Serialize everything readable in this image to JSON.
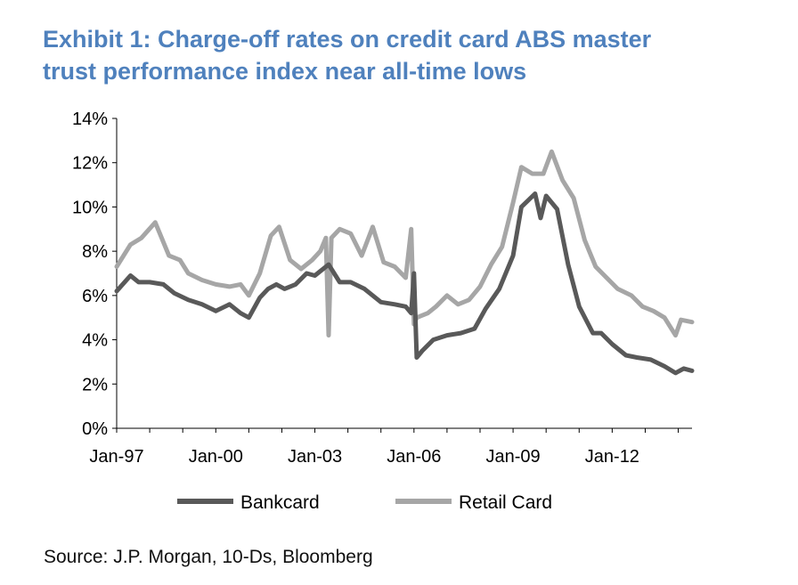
{
  "title_lines": [
    "Exhibit 1: Charge-off rates on credit card ABS master",
    "trust performance index near all-time lows"
  ],
  "source": "Source: J.P. Morgan, 10-Ds, Bloomberg",
  "colors": {
    "title": "#4f81bd",
    "bankcard": "#595959",
    "retail": "#a6a6a6",
    "axis": "#000000"
  },
  "chart_data": {
    "type": "line",
    "title": "",
    "xlabel": "",
    "ylabel": "",
    "ylim": [
      0,
      14
    ],
    "xlim": [
      "1997-01",
      "2014-06"
    ],
    "yticks": [
      0,
      2,
      4,
      6,
      8,
      10,
      12,
      14
    ],
    "ytick_labels": [
      "0%",
      "2%",
      "4%",
      "6%",
      "8%",
      "10%",
      "12%",
      "14%"
    ],
    "xtick_labels": [
      "Jan-97",
      "Jan-00",
      "Jan-03",
      "Jan-06",
      "Jan-09",
      "Jan-12"
    ],
    "xtick_dates": [
      "1997-01",
      "2000-01",
      "2003-01",
      "2006-01",
      "2009-01",
      "2012-01"
    ],
    "grid": false,
    "legend_position": "bottom",
    "series": [
      {
        "name": "Bankcard",
        "color": "#595959",
        "x": [
          "1997-01",
          "1997-06",
          "1997-09",
          "1998-01",
          "1998-06",
          "1998-10",
          "1999-03",
          "1999-08",
          "2000-01",
          "2000-06",
          "2000-10",
          "2001-01",
          "2001-05",
          "2001-08",
          "2001-11",
          "2002-02",
          "2002-06",
          "2002-10",
          "2003-01",
          "2003-06",
          "2003-10",
          "2004-02",
          "2004-07",
          "2005-01",
          "2005-06",
          "2005-10",
          "2005-12",
          "2006-01",
          "2006-02",
          "2006-04",
          "2006-08",
          "2007-01",
          "2007-06",
          "2007-11",
          "2008-03",
          "2008-08",
          "2009-01",
          "2009-04",
          "2009-09",
          "2009-11",
          "2010-01",
          "2010-05",
          "2010-09",
          "2011-01",
          "2011-06",
          "2011-09",
          "2012-01",
          "2012-06",
          "2012-10",
          "2013-03",
          "2013-08",
          "2013-12",
          "2014-03",
          "2014-06"
        ],
        "values": [
          6.2,
          6.9,
          6.6,
          6.6,
          6.5,
          6.1,
          5.8,
          5.6,
          5.3,
          5.6,
          5.2,
          5.0,
          5.9,
          6.3,
          6.5,
          6.3,
          6.5,
          7.0,
          6.9,
          7.4,
          6.6,
          6.6,
          6.3,
          5.7,
          5.6,
          5.5,
          5.2,
          7.0,
          3.2,
          3.5,
          4.0,
          4.2,
          4.3,
          4.5,
          5.4,
          6.3,
          7.8,
          10.0,
          10.6,
          9.5,
          10.5,
          9.9,
          7.4,
          5.5,
          4.3,
          4.3,
          3.8,
          3.3,
          3.2,
          3.1,
          2.8,
          2.5,
          2.7,
          2.6
        ]
      },
      {
        "name": "Retail Card",
        "color": "#a6a6a6",
        "x": [
          "1997-01",
          "1997-06",
          "1997-10",
          "1998-03",
          "1998-08",
          "1998-12",
          "1999-03",
          "1999-08",
          "2000-01",
          "2000-06",
          "2000-10",
          "2001-01",
          "2001-05",
          "2001-09",
          "2001-12",
          "2002-04",
          "2002-08",
          "2002-12",
          "2003-03",
          "2003-05",
          "2003-06",
          "2003-07",
          "2003-10",
          "2004-02",
          "2004-06",
          "2004-10",
          "2005-02",
          "2005-06",
          "2005-10",
          "2005-12",
          "2006-01",
          "2006-02",
          "2006-06",
          "2006-09",
          "2007-01",
          "2007-05",
          "2007-09",
          "2008-01",
          "2008-05",
          "2008-09",
          "2009-01",
          "2009-04",
          "2009-08",
          "2009-12",
          "2010-03",
          "2010-07",
          "2010-11",
          "2011-03",
          "2011-07",
          "2011-11",
          "2012-03",
          "2012-08",
          "2012-12",
          "2013-04",
          "2013-08",
          "2013-12",
          "2014-02",
          "2014-06"
        ],
        "values": [
          7.3,
          8.3,
          8.6,
          9.3,
          7.8,
          7.6,
          7.0,
          6.7,
          6.5,
          6.4,
          6.5,
          6.0,
          7.0,
          8.7,
          9.1,
          7.6,
          7.2,
          7.6,
          8.0,
          8.6,
          4.2,
          8.6,
          9.0,
          8.8,
          7.8,
          9.1,
          7.5,
          7.3,
          6.8,
          9.0,
          4.7,
          5.0,
          5.2,
          5.5,
          6.0,
          5.6,
          5.8,
          6.4,
          7.4,
          8.2,
          10.2,
          11.8,
          11.5,
          11.5,
          12.5,
          11.2,
          10.4,
          8.5,
          7.3,
          6.8,
          6.3,
          6.0,
          5.5,
          5.3,
          5.0,
          4.2,
          4.9,
          4.8
        ]
      }
    ]
  }
}
